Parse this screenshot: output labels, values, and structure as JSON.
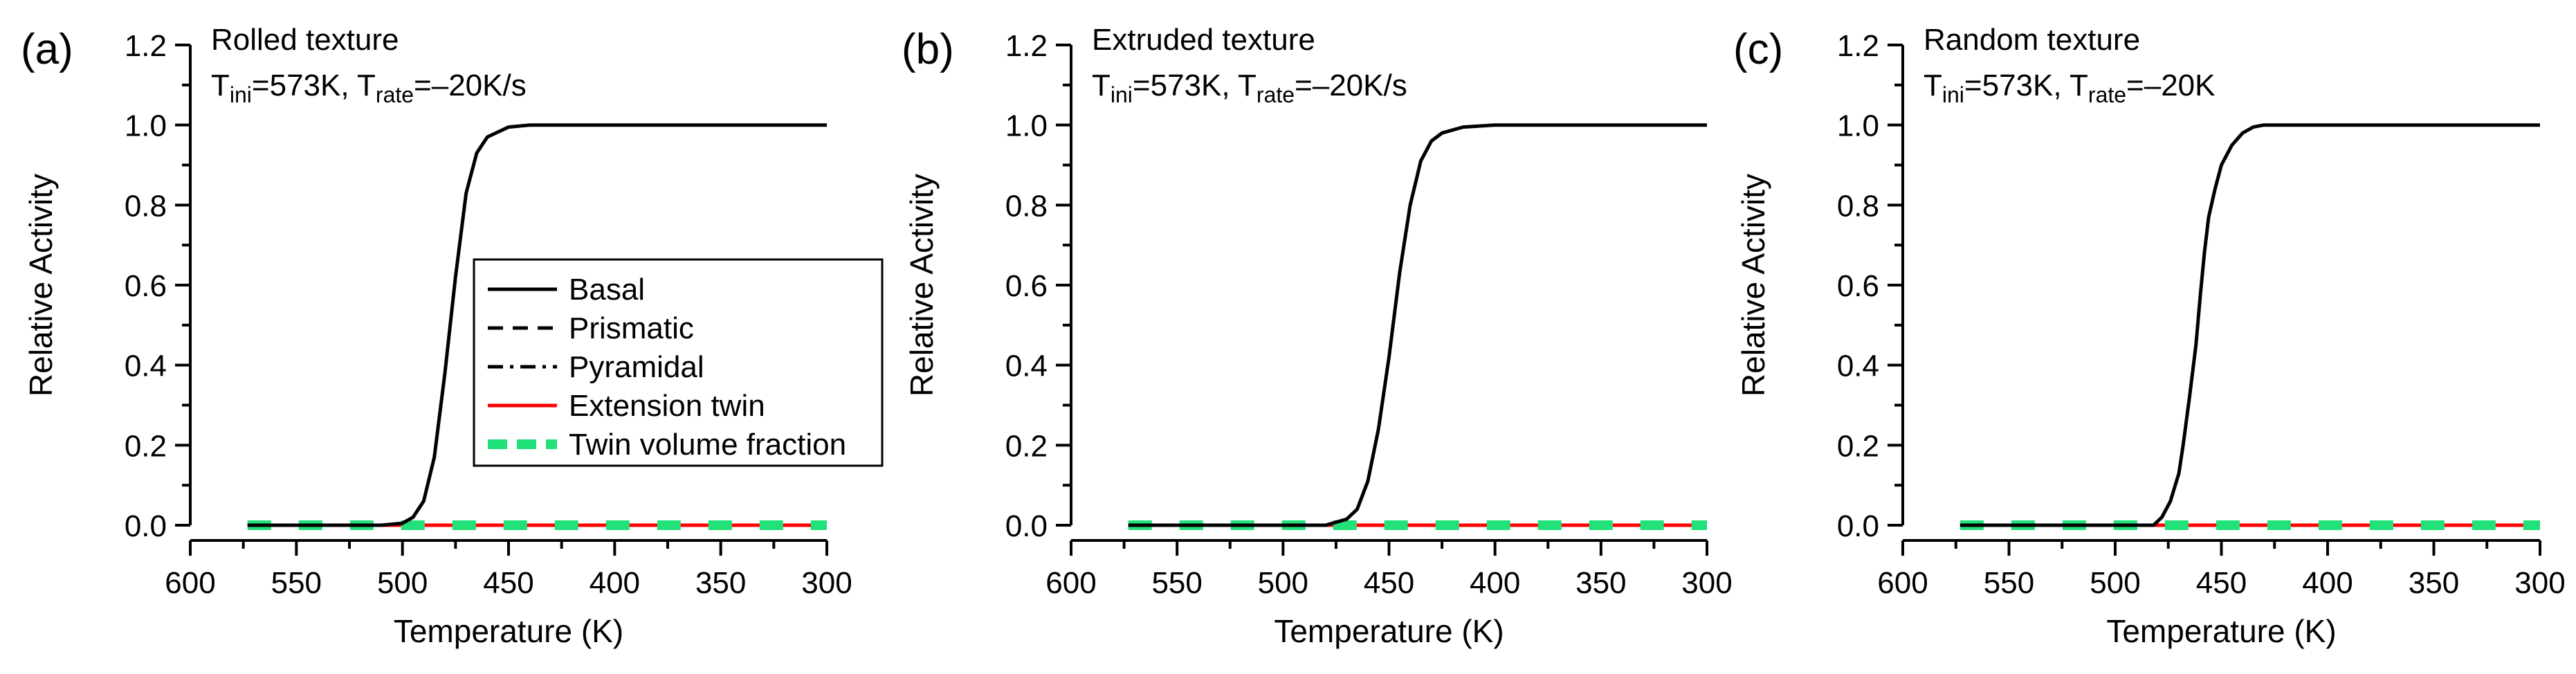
{
  "legend": {
    "items": [
      {
        "label": "Basal",
        "style": "solid",
        "color": "#000000"
      },
      {
        "label": "Prismatic",
        "style": "dashed",
        "color": "#000000"
      },
      {
        "label": "Pyramidal",
        "style": "dashdot",
        "color": "#000000"
      },
      {
        "label": "Extension twin",
        "style": "solid",
        "color": "#ff0000"
      },
      {
        "label": "Twin volume fraction",
        "style": "thick-dashed",
        "color": "#22e07a"
      }
    ]
  },
  "chart_data": [
    {
      "type": "line",
      "panel": "(a)",
      "title": "Rolled texture",
      "condition": {
        "t_ini_sub": "ini",
        "t_ini_val": "=573K, ",
        "t_rate_sub": "rate",
        "t_rate_val": "=–20K/s"
      },
      "xlabel": "Temperature (K)",
      "ylabel": "Relative Activity",
      "xlim": [
        600,
        300
      ],
      "ylim": [
        0,
        1.2
      ],
      "xticks": [
        "600",
        "550",
        "500",
        "450",
        "400",
        "350",
        "300"
      ],
      "yticks": [
        "0.0",
        "0.2",
        "0.4",
        "0.6",
        "0.8",
        "1.0",
        "1.2"
      ],
      "series": [
        {
          "name": "Basal",
          "x": [
            300,
            420,
            440,
            450,
            460,
            465,
            470,
            475,
            480,
            485,
            490,
            495,
            500,
            510,
            573
          ],
          "y": [
            1.0,
            1.0,
            1.0,
            0.995,
            0.97,
            0.93,
            0.83,
            0.62,
            0.38,
            0.17,
            0.06,
            0.02,
            0.005,
            0.0,
            0.0
          ]
        },
        {
          "name": "Prismatic",
          "x": [
            573,
            300
          ],
          "y": [
            0,
            0
          ]
        },
        {
          "name": "Pyramidal",
          "x": [
            573,
            300
          ],
          "y": [
            0,
            0
          ]
        },
        {
          "name": "Extension twin",
          "x": [
            573,
            300
          ],
          "y": [
            0,
            0
          ]
        },
        {
          "name": "Twin volume fraction",
          "x": [
            573,
            300
          ],
          "y": [
            0,
            0
          ]
        }
      ]
    },
    {
      "type": "line",
      "panel": "(b)",
      "title": "Extruded texture",
      "condition": {
        "t_ini_sub": "ini",
        "t_ini_val": "=573K, ",
        "t_rate_sub": "rate",
        "t_rate_val": "=–20K/s"
      },
      "xlabel": "Temperature (K)",
      "ylabel": "Relative Activity",
      "xlim": [
        600,
        300
      ],
      "ylim": [
        0,
        1.2
      ],
      "xticks": [
        "600",
        "550",
        "500",
        "450",
        "400",
        "350",
        "300"
      ],
      "yticks": [
        "0.0",
        "0.2",
        "0.4",
        "0.6",
        "0.8",
        "1.0",
        "1.2"
      ],
      "series": [
        {
          "name": "Basal",
          "x": [
            300,
            400,
            415,
            425,
            430,
            435,
            440,
            445,
            450,
            455,
            460,
            465,
            470,
            480,
            573
          ],
          "y": [
            1.0,
            1.0,
            0.995,
            0.98,
            0.96,
            0.91,
            0.8,
            0.63,
            0.42,
            0.24,
            0.11,
            0.04,
            0.015,
            0.0,
            0.0
          ]
        },
        {
          "name": "Prismatic",
          "x": [
            573,
            300
          ],
          "y": [
            0,
            0
          ]
        },
        {
          "name": "Pyramidal",
          "x": [
            573,
            300
          ],
          "y": [
            0,
            0
          ]
        },
        {
          "name": "Extension twin",
          "x": [
            573,
            300
          ],
          "y": [
            0,
            0
          ]
        },
        {
          "name": "Twin volume fraction",
          "x": [
            573,
            300
          ],
          "y": [
            0,
            0
          ]
        }
      ]
    },
    {
      "type": "line",
      "panel": "(c)",
      "title": "Random texture",
      "condition": {
        "t_ini_sub": "ini",
        "t_ini_val": "=573K, ",
        "t_rate_sub": "rate",
        "t_rate_val": "=–20K"
      },
      "xlabel": "Temperature (K)",
      "ylabel": "Relative Activity",
      "xlim": [
        600,
        300
      ],
      "ylim": [
        0,
        1.2
      ],
      "xticks": [
        "600",
        "550",
        "500",
        "450",
        "400",
        "350",
        "300"
      ],
      "yticks": [
        "0.0",
        "0.2",
        "0.4",
        "0.6",
        "0.8",
        "1.0",
        "1.2"
      ],
      "series": [
        {
          "name": "Basal",
          "x": [
            300,
            430,
            435,
            440,
            445,
            450,
            453,
            456,
            458,
            460,
            462,
            465,
            468,
            470,
            474,
            478,
            482,
            573
          ],
          "y": [
            1.0,
            1.0,
            0.995,
            0.98,
            0.95,
            0.9,
            0.84,
            0.77,
            0.68,
            0.57,
            0.45,
            0.32,
            0.2,
            0.13,
            0.06,
            0.02,
            0.0,
            0.0
          ]
        },
        {
          "name": "Prismatic",
          "x": [
            573,
            300
          ],
          "y": [
            0,
            0
          ]
        },
        {
          "name": "Pyramidal",
          "x": [
            573,
            300
          ],
          "y": [
            0,
            0
          ]
        },
        {
          "name": "Extension twin",
          "x": [
            573,
            300
          ],
          "y": [
            0,
            0
          ]
        },
        {
          "name": "Twin volume fraction",
          "x": [
            573,
            300
          ],
          "y": [
            0,
            0
          ]
        }
      ]
    }
  ]
}
